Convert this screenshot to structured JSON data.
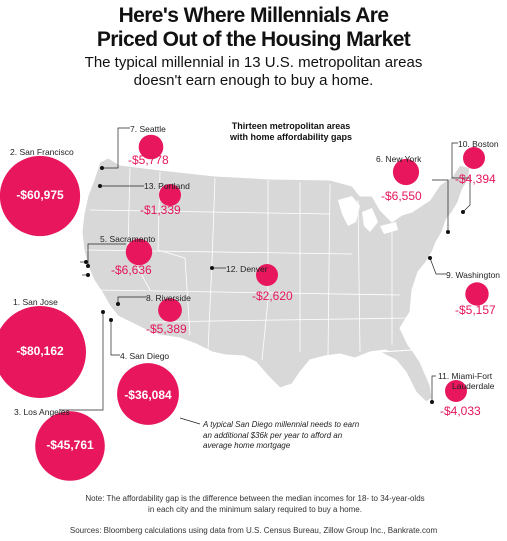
{
  "title_line1": "Here's Where Millennials Are",
  "title_line2": "Priced Out of the Housing Market",
  "subtitle_line1": "The typical millennial in 13 U.S. metropolitan areas",
  "subtitle_line2": "doesn't earn enough to buy a home.",
  "map_title_line1": "Thirteen metropolitan areas",
  "map_title_line2": "with home affordability gaps",
  "colors": {
    "bubble": "#e8175d",
    "land": "#d8d8d8",
    "border": "#ffffff"
  },
  "cities": [
    {
      "rank": 1,
      "label": "1. San Jose",
      "gap": "-$80,162",
      "gap_value": -80162
    },
    {
      "rank": 2,
      "label": "2. San Francisco",
      "gap": "-$60,975",
      "gap_value": -60975
    },
    {
      "rank": 3,
      "label": "3. Los Angeles",
      "gap": "-$45,761",
      "gap_value": -45761
    },
    {
      "rank": 4,
      "label": "4. San Diego",
      "gap": "-$36,084",
      "gap_value": -36084
    },
    {
      "rank": 5,
      "label": "5. Sacramento",
      "gap": "-$6,636",
      "gap_value": -6636
    },
    {
      "rank": 6,
      "label": "6. New York",
      "gap": "-$6,550",
      "gap_value": -6550
    },
    {
      "rank": 7,
      "label": "7. Seattle",
      "gap": "-$5,778",
      "gap_value": -5778
    },
    {
      "rank": 8,
      "label": "8. Riverside",
      "gap": "-$5,389",
      "gap_value": -5389
    },
    {
      "rank": 9,
      "label": "9. Washington",
      "gap": "-$5,157",
      "gap_value": -5157
    },
    {
      "rank": 10,
      "label": "10. Boston",
      "gap": "-$4,394",
      "gap_value": -4394
    },
    {
      "rank": 11,
      "label_line1": "11. Miami-Fort",
      "label_line2": "Lauderdale",
      "gap": "-$4,033",
      "gap_value": -4033
    },
    {
      "rank": 12,
      "label": "12. Denver",
      "gap": "-$2,620",
      "gap_value": -2620
    },
    {
      "rank": 13,
      "label": "13. Portland",
      "gap": "-$1,339",
      "gap_value": -1339
    }
  ],
  "annotation_line1": "A typical San Diego millennial needs to earn",
  "annotation_line2": "an additional $36k per year to afford an",
  "annotation_line3": "average home mortgage",
  "note_line1": "Note: The affordability gap is the difference between the median incomes for 18- to 34-year-olds",
  "note_line2": "in each city and the minimum salary required to buy a home.",
  "source": "Sources: Bloomberg calculations using data from U.S. Census Bureau, Zillow Group Inc., Bankrate.com"
}
